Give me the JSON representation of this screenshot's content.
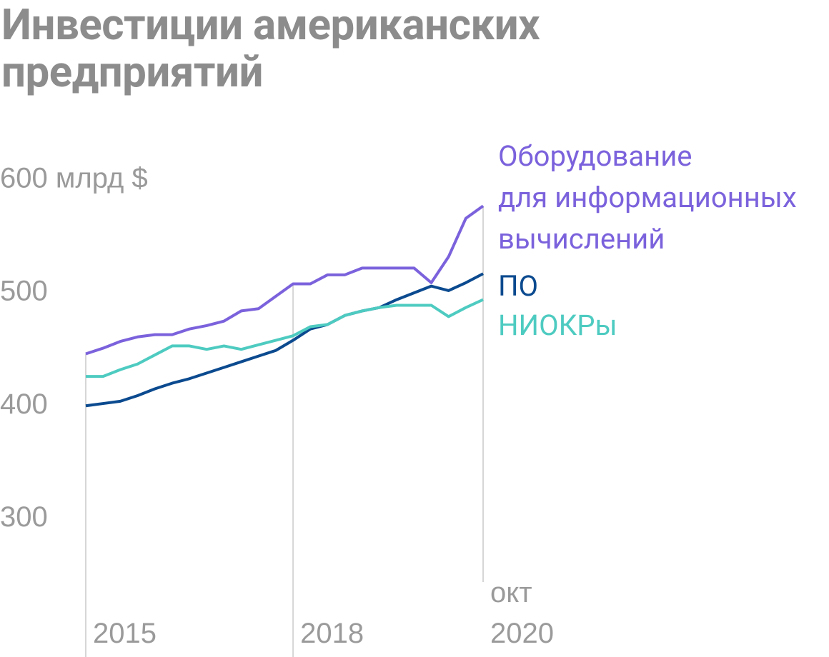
{
  "chart_data": {
    "type": "line",
    "title": "Инвестиции американских предприятий",
    "categories": [
      "2015",
      null,
      null,
      null,
      null,
      null,
      null,
      null,
      null,
      null,
      null,
      null,
      "2018",
      null,
      null,
      null,
      null,
      null,
      null,
      null,
      null,
      null,
      null,
      "2020"
    ],
    "x_annotation": "окт",
    "ylim": [
      187,
      600
    ],
    "yticks": [
      {
        "value": 600,
        "label": "600 млрд $"
      },
      500,
      400,
      300
    ],
    "grid": false,
    "series": [
      {
        "name": "Оборудование\nдля информационных\nвычислений",
        "color": "#7b62dc",
        "values": [
          446,
          451,
          457,
          461,
          463,
          463,
          468,
          471,
          475,
          484,
          486,
          497,
          508,
          508,
          516,
          516,
          522,
          522,
          522,
          522,
          509,
          532,
          566,
          577
        ]
      },
      {
        "name": "ПО",
        "color": "#0b4a8f",
        "values": [
          400,
          402,
          404,
          409,
          415,
          420,
          424,
          429,
          434,
          439,
          444,
          449,
          458,
          468,
          472,
          480,
          484,
          487,
          494,
          500,
          506,
          502,
          509,
          517
        ]
      },
      {
        "name": "НИОКРы",
        "color": "#4ecbc1",
        "values": [
          426,
          426,
          432,
          437,
          445,
          453,
          453,
          450,
          453,
          450,
          454,
          458,
          462,
          470,
          472,
          480,
          484,
          487,
          489,
          489,
          489,
          479,
          487,
          494
        ]
      }
    ]
  }
}
